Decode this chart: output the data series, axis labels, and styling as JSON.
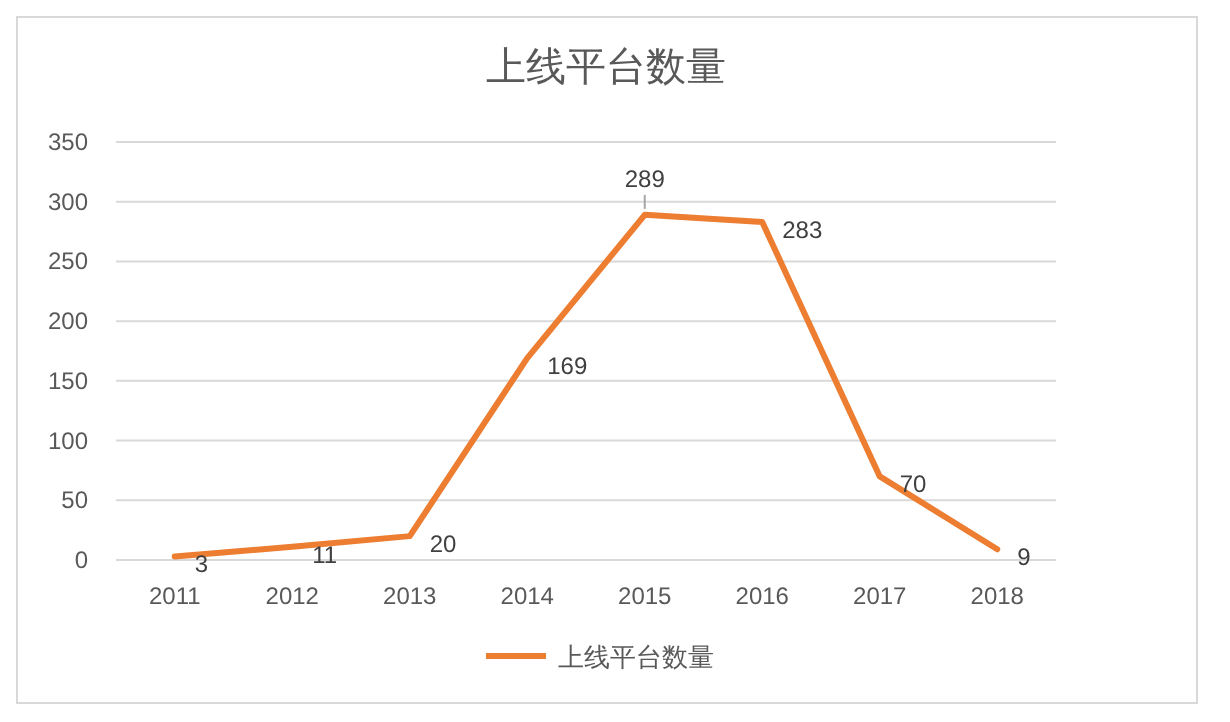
{
  "chart_data": {
    "type": "line",
    "title": "上线平台数量",
    "categories": [
      "2011",
      "2012",
      "2013",
      "2014",
      "2015",
      "2016",
      "2017",
      "2018"
    ],
    "series": [
      {
        "name": "上线平台数量",
        "color": "#ed7d31",
        "values": [
          3,
          11,
          20,
          169,
          289,
          283,
          70,
          9
        ]
      }
    ],
    "ylim": [
      0,
      350
    ],
    "yticks": [
      0,
      50,
      100,
      150,
      200,
      250,
      300,
      350
    ],
    "grid": "y",
    "legend": "bottom",
    "data_labels": true,
    "marker": "none",
    "line_style": "solid"
  }
}
